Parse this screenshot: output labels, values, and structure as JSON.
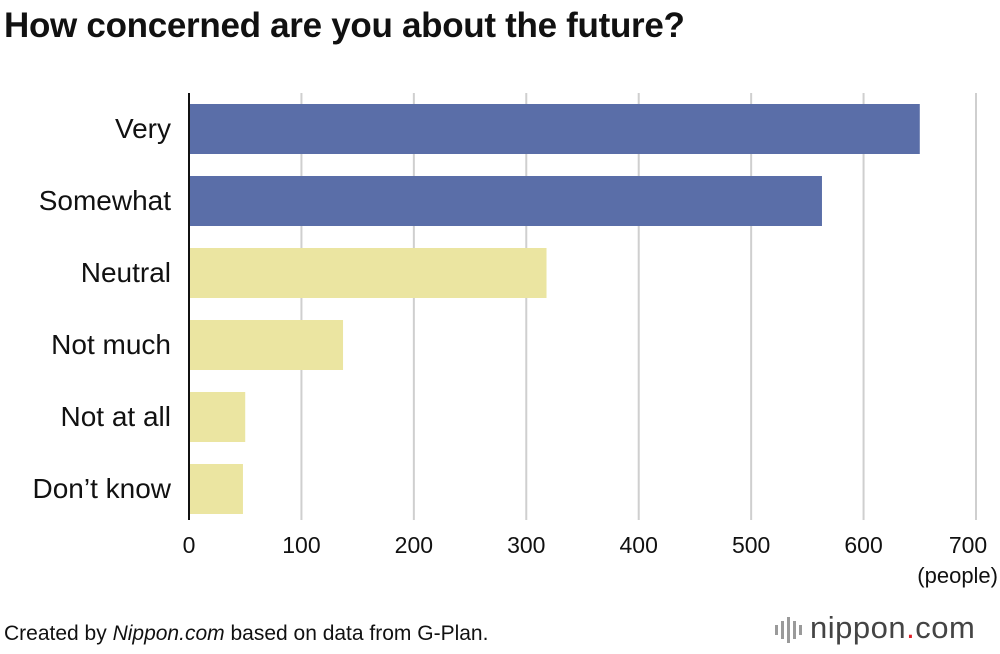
{
  "chart_data": {
    "type": "bar",
    "orientation": "horizontal",
    "title": "How concerned are you about the future?",
    "categories": [
      "Very",
      "Somewhat",
      "Neutral",
      "Not much",
      "Not at all",
      "Don’t know"
    ],
    "values": [
      650,
      563,
      318,
      137,
      50,
      48
    ],
    "bar_colors": [
      "#5a6ea8",
      "#5a6ea8",
      "#ebe5a1",
      "#ebe5a1",
      "#ebe5a1",
      "#ebe5a1"
    ],
    "xlim": [
      0,
      700
    ],
    "xticks": [
      0,
      100,
      200,
      300,
      400,
      500,
      600,
      700
    ],
    "xunit": "(people)",
    "grid": true
  },
  "footer": {
    "source_prefix": "Created by ",
    "source_site": "Nippon.com",
    "source_suffix": " based on data from G-Plan."
  },
  "brand": {
    "name": "nippon",
    "dot": ".",
    "tld": "com",
    "accent_color": "#e0202a"
  }
}
